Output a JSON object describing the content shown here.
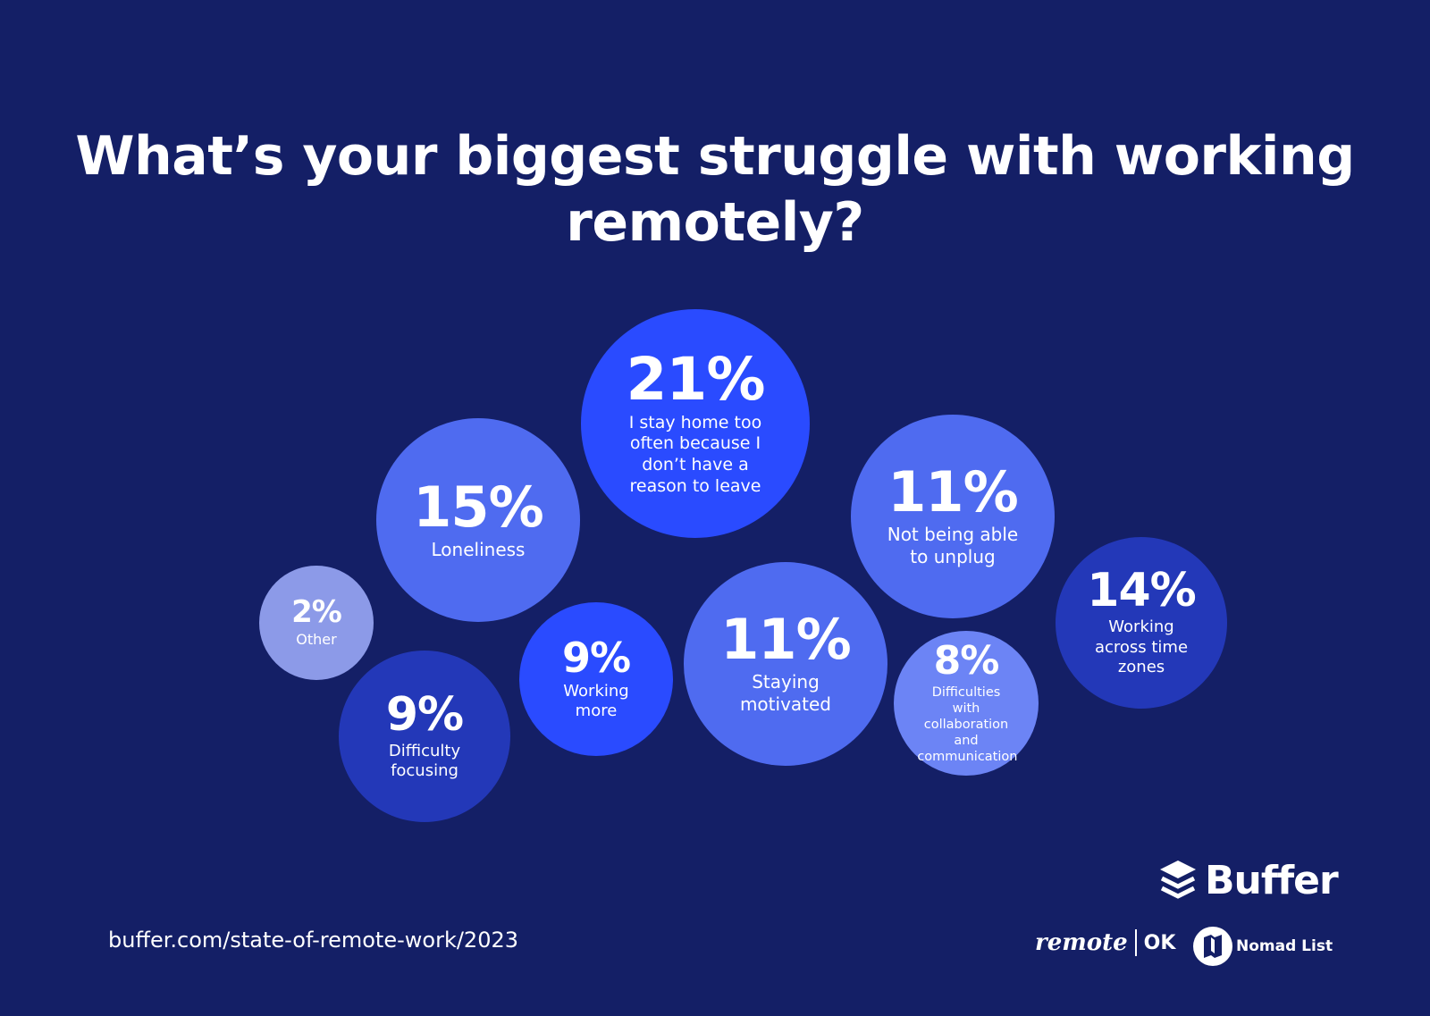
{
  "colors": {
    "background": "#141f66",
    "bright": "#2a4bff",
    "medium": "#4f6bf0",
    "light": "#6c84f5",
    "pale": "#8c9ae8",
    "dark": "#2338b8"
  },
  "chart_data": {
    "type": "bubble",
    "title": "What’s your biggest struggle with working remotely?",
    "items": [
      {
        "label": "I stay home too often because I don’t have a reason to leave",
        "value": 21,
        "display": "21%",
        "color": "#2a4bff"
      },
      {
        "label": "Loneliness",
        "value": 15,
        "display": "15%",
        "color": "#4f6bf0"
      },
      {
        "label": "Not being able to unplug",
        "value": 11,
        "display": "11%",
        "color": "#4f6bf0"
      },
      {
        "label": "Other",
        "value": 2,
        "display": "2%",
        "color": "#8c9ae8"
      },
      {
        "label": "Difficulty focusing",
        "value": 9,
        "display": "9%",
        "color": "#2338b8"
      },
      {
        "label": "Working more",
        "value": 9,
        "display": "9%",
        "color": "#2a4bff"
      },
      {
        "label": "Staying motivated",
        "value": 11,
        "display": "11%",
        "color": "#4f6bf0"
      },
      {
        "label": "Difficulties with collaboration and communication",
        "value": 8,
        "display": "8%",
        "color": "#6c84f5"
      },
      {
        "label": "Working across time zones",
        "value": 14,
        "display": "14%",
        "color": "#2338b8"
      }
    ]
  },
  "footer": {
    "source": "buffer.com/state-of-remote-work/2023",
    "buffer_logo": "Buffer",
    "remote_logo": "remote",
    "ok_logo": "OK",
    "nomad_logo": "Nomad List"
  }
}
